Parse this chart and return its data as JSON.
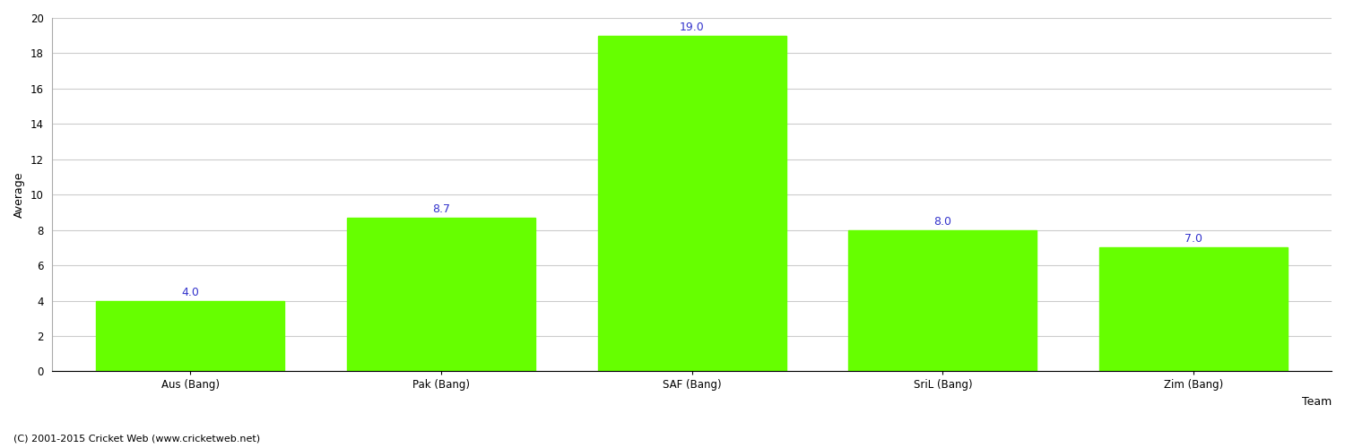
{
  "categories": [
    "Aus (Bang)",
    "Pak (Bang)",
    "SAF (Bang)",
    "SriL (Bang)",
    "Zim (Bang)"
  ],
  "values": [
    4.0,
    8.7,
    19.0,
    8.0,
    7.0
  ],
  "bar_color": "#66ff00",
  "bar_edge_color": "#66ff00",
  "xlabel": "Team",
  "ylabel": "Average",
  "ylim": [
    0,
    20
  ],
  "yticks": [
    0,
    2,
    4,
    6,
    8,
    10,
    12,
    14,
    16,
    18,
    20
  ],
  "value_label_color": "#3333cc",
  "value_label_fontsize": 9,
  "axis_label_fontsize": 9,
  "tick_label_fontsize": 8.5,
  "background_color": "#ffffff",
  "grid_color": "#cccccc",
  "footer_text": "(C) 2001-2015 Cricket Web (www.cricketweb.net)",
  "footer_fontsize": 8
}
